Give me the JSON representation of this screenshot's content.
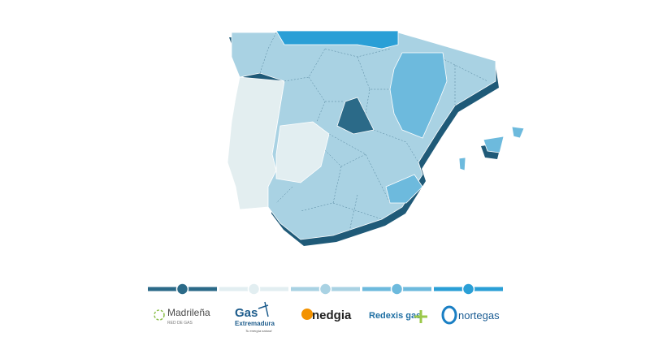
{
  "legend": [
    {
      "name": "Madrileña",
      "tagline": "RED DE GAS",
      "color": "#2b6a88"
    },
    {
      "name": "Gas",
      "subname": "Extremadura",
      "tagline": "Tu energía natural",
      "color": "#e2eef1"
    },
    {
      "name": "nedgia",
      "color": "#a9d2e3"
    },
    {
      "name": "Redexis gas",
      "color": "#6dbadd"
    },
    {
      "name": "nortegas",
      "color": "#2a9fd6"
    }
  ]
}
